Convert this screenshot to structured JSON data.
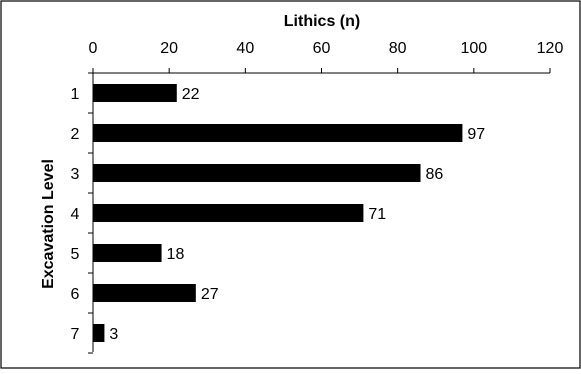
{
  "chart_data": {
    "type": "bar",
    "orientation": "horizontal",
    "title": "",
    "xlabel": "Lithics (n)",
    "ylabel": "Excavation Level",
    "categories": [
      "1",
      "2",
      "3",
      "4",
      "5",
      "6",
      "7"
    ],
    "values": [
      22,
      97,
      86,
      71,
      18,
      27,
      3
    ],
    "data_labels": [
      "22",
      "97",
      "86",
      "71",
      "18",
      "27",
      "3"
    ],
    "xlim": [
      0,
      120
    ],
    "x_ticks": [
      0,
      20,
      40,
      60,
      80,
      100,
      120
    ],
    "x_tick_labels": [
      "0",
      "20",
      "40",
      "60",
      "80",
      "100",
      "120"
    ],
    "x_axis_position": "top",
    "category_order": "top-to-bottom",
    "grid": false,
    "legend": "none",
    "bar_color": "#000000",
    "border_color": "#000000"
  }
}
